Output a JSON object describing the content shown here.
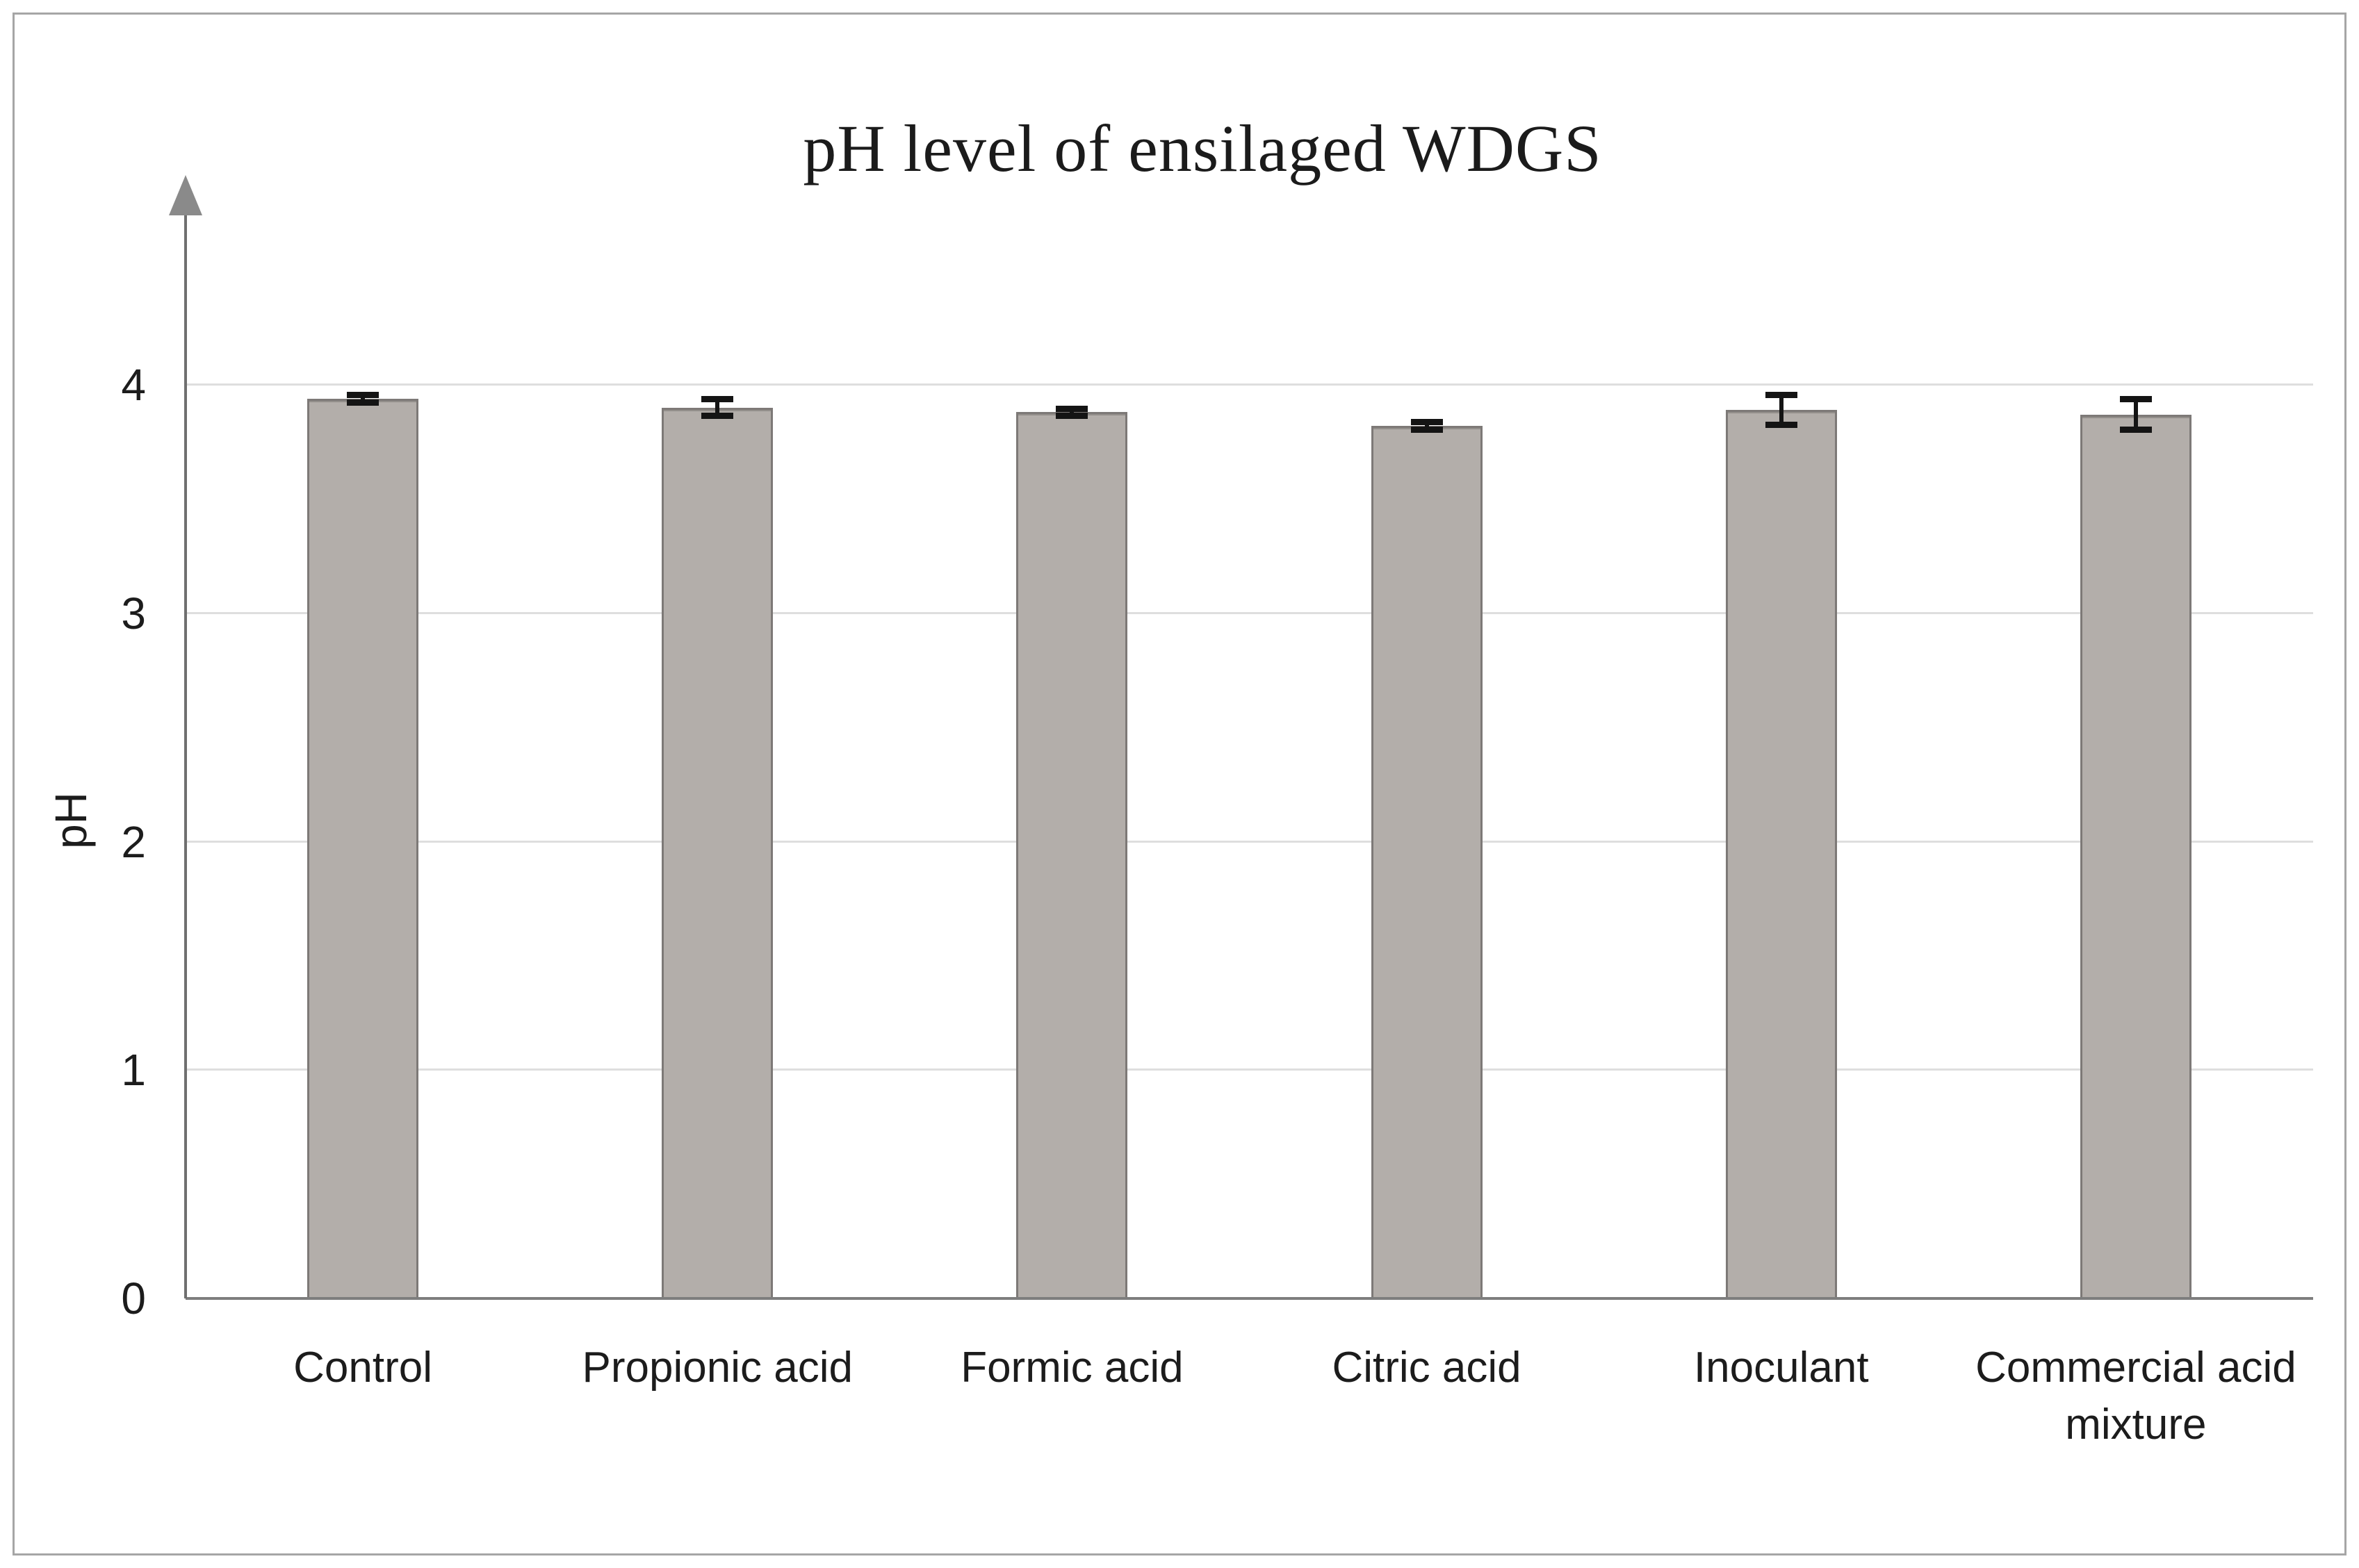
{
  "figure": {
    "frame_border_color": "#a6a6a6",
    "background_color": "#ffffff"
  },
  "chart_data": {
    "type": "bar",
    "title": "pH level of ensilaged WDGS",
    "ylabel": "pH",
    "xlabel": "",
    "categories": [
      "Control",
      "Propionic acid",
      "Formic acid",
      "Citric acid",
      "Inoculant",
      "Commercial acid mixture"
    ],
    "values": [
      3.94,
      3.9,
      3.88,
      3.82,
      3.89,
      3.87
    ],
    "error_bars": [
      0.03,
      0.05,
      0.03,
      0.03,
      0.08,
      0.08
    ],
    "yticks": [
      0,
      1,
      2,
      3,
      4
    ],
    "ylim": [
      0,
      4.9
    ],
    "grid": true,
    "legend": "none",
    "bar_color": "#b3aeaa",
    "bar_border_color": "#7d7977",
    "error_bar_color": "#141414",
    "gridline_color": "#dedede",
    "axis_line_color": "#6f6f6f",
    "arrow_color": "#8a8a8a",
    "text_color": "#1c1c1c"
  }
}
